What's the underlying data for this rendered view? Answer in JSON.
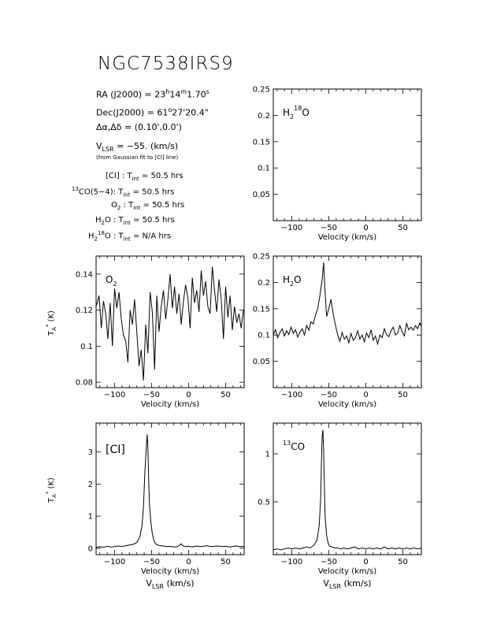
{
  "header": {
    "title": "NGC7538IRS9",
    "ra_label": "RA (J2000) = ",
    "ra_h": "23",
    "ra_h_unit": "h",
    "ra_m": "14",
    "ra_m_unit": "m",
    "ra_s": "1.70",
    "ra_s_unit": "s",
    "dec_label": "Dec(J2000) = ",
    "dec_deg": "61",
    "dec_deg_unit": "o",
    "dec_rest": "27'20.4\"",
    "offset_label": "Δα,Δδ = ",
    "offset_value": "(0.10',0.0')",
    "vlsr_V": "V",
    "vlsr_sub": "LSR",
    "vlsr_value": " = −55. (km/s)",
    "fit_note": "(from Gaussian fit to [CI] line)"
  },
  "integration": [
    {
      "pre": "",
      "sup": "",
      "name": "[CI]",
      "sep": " : T",
      "sub": "int",
      "value": " = 50.5 hrs"
    },
    {
      "pre": "",
      "sup": "13",
      "name": "CO(5−4):",
      "sep": " T",
      "sub": "int",
      "value": " = 50.5 hrs"
    },
    {
      "pre": "",
      "sup": "",
      "name": "O",
      "name_sub": "2",
      "sep": " : T",
      "sub": "int",
      "value": " = 50.5 hrs"
    },
    {
      "pre": "",
      "sup": "",
      "name": "H",
      "name_sub": "2",
      "name_after": "O",
      "sep": " : T",
      "sub": "int",
      "value": " = 50.5 hrs"
    },
    {
      "pre": "",
      "sup": "18",
      "name": "H",
      "name_sub": "2",
      "name_after": "O",
      "sep": " : T",
      "sub": "int",
      "value": " = N/A hrs"
    }
  ],
  "axis_text": {
    "xlabel": "Velocity (km/s)",
    "bottom_xlabel": "V",
    "bottom_xlabel_sub": "LSR",
    "bottom_xlabel_rest": " (km/s)",
    "ylabel": "T",
    "ylabel_sub": "A",
    "ylabel_sup": "*",
    "ylabel_rest": " (K)"
  },
  "chart_data": [
    {
      "type": "line",
      "panel": "h218o",
      "label": "H2 18O",
      "xlim": [
        -125,
        75
      ],
      "ylim": [
        0.0,
        0.25
      ],
      "x_ticks": [
        -100,
        -50,
        0,
        50
      ],
      "y_ticks": [
        0.05,
        0.1,
        0.15,
        0.2,
        0.25
      ],
      "y_tick_labels": [
        "0.05",
        "0.1",
        "0.15",
        "0.2",
        "0.25"
      ],
      "xlabel": "Velocity (km/s)",
      "series": []
    },
    {
      "type": "line",
      "panel": "o2",
      "label": "O2",
      "xlim": [
        -125,
        75
      ],
      "ylim": [
        0.077,
        0.15
      ],
      "x_ticks": [
        -100,
        -50,
        0,
        50
      ],
      "y_ticks": [
        0.08,
        0.1,
        0.12,
        0.14
      ],
      "y_tick_labels": [
        "0.08",
        "0.1",
        "0.12",
        "0.14"
      ],
      "xlabel": "Velocity (km/s)",
      "series": [
        {
          "x": [
            -125,
            -121,
            -118,
            -115,
            -112,
            -109,
            -106,
            -103,
            -100,
            -97,
            -94,
            -91,
            -88,
            -85,
            -82,
            -79,
            -76,
            -73,
            -70,
            -67,
            -64,
            -61,
            -58,
            -55,
            -52,
            -49,
            -46,
            -43,
            -40,
            -37,
            -34,
            -31,
            -28,
            -25,
            -22,
            -19,
            -16,
            -13,
            -10,
            -7,
            -4,
            -1,
            2,
            5,
            8,
            11,
            14,
            17,
            20,
            23,
            26,
            29,
            32,
            35,
            38,
            41,
            44,
            47,
            50,
            53,
            56,
            59,
            62,
            65,
            68,
            71,
            74
          ],
          "y": [
            0.122,
            0.128,
            0.11,
            0.125,
            0.118,
            0.104,
            0.124,
            0.1,
            0.132,
            0.121,
            0.13,
            0.115,
            0.106,
            0.103,
            0.091,
            0.12,
            0.112,
            0.126,
            0.108,
            0.089,
            0.098,
            0.081,
            0.112,
            0.096,
            0.13,
            0.119,
            0.087,
            0.128,
            0.108,
            0.122,
            0.131,
            0.115,
            0.126,
            0.14,
            0.121,
            0.133,
            0.118,
            0.129,
            0.112,
            0.125,
            0.134,
            0.127,
            0.11,
            0.138,
            0.124,
            0.131,
            0.119,
            0.142,
            0.128,
            0.136,
            0.122,
            0.118,
            0.144,
            0.131,
            0.119,
            0.137,
            0.126,
            0.104,
            0.133,
            0.116,
            0.128,
            0.109,
            0.122,
            0.113,
            0.118,
            0.11,
            0.12
          ]
        }
      ]
    },
    {
      "type": "line",
      "panel": "h2o",
      "label": "H2O",
      "xlim": [
        -125,
        75
      ],
      "ylim": [
        0.0,
        0.25
      ],
      "x_ticks": [
        -100,
        -50,
        0,
        50
      ],
      "y_ticks": [
        0.05,
        0.1,
        0.15,
        0.2,
        0.25
      ],
      "y_tick_labels": [
        "0.05",
        "0.1",
        "0.15",
        "0.2",
        "0.25"
      ],
      "xlabel": "Velocity (km/s)",
      "series": [
        {
          "x": [
            -125,
            -122,
            -119,
            -116,
            -113,
            -110,
            -107,
            -104,
            -101,
            -98,
            -95,
            -92,
            -89,
            -86,
            -83,
            -80,
            -77,
            -74,
            -71,
            -68,
            -65,
            -62,
            -59,
            -57,
            -55,
            -53,
            -50,
            -47,
            -44,
            -41,
            -38,
            -35,
            -32,
            -29,
            -26,
            -23,
            -20,
            -17,
            -14,
            -11,
            -8,
            -5,
            -2,
            1,
            4,
            7,
            10,
            13,
            16,
            19,
            22,
            25,
            28,
            31,
            34,
            37,
            40,
            43,
            46,
            49,
            52,
            55,
            58,
            61,
            64,
            67,
            70,
            73,
            75
          ],
          "y": [
            0.1,
            0.11,
            0.095,
            0.105,
            0.112,
            0.098,
            0.108,
            0.101,
            0.115,
            0.103,
            0.11,
            0.096,
            0.105,
            0.112,
            0.1,
            0.118,
            0.109,
            0.125,
            0.121,
            0.138,
            0.15,
            0.175,
            0.205,
            0.238,
            0.18,
            0.135,
            0.15,
            0.168,
            0.14,
            0.118,
            0.1,
            0.088,
            0.105,
            0.092,
            0.098,
            0.085,
            0.103,
            0.09,
            0.095,
            0.108,
            0.092,
            0.1,
            0.087,
            0.104,
            0.095,
            0.11,
            0.09,
            0.098,
            0.083,
            0.1,
            0.095,
            0.112,
            0.101,
            0.097,
            0.108,
            0.115,
            0.1,
            0.104,
            0.118,
            0.106,
            0.098,
            0.122,
            0.11,
            0.115,
            0.109,
            0.118,
            0.112,
            0.123,
            0.116
          ]
        }
      ]
    },
    {
      "type": "line",
      "panel": "ci",
      "label": "[CI]",
      "xlim": [
        -125,
        75
      ],
      "ylim": [
        -0.2,
        3.9
      ],
      "x_ticks": [
        -100,
        -50,
        0,
        50
      ],
      "y_ticks": [
        0,
        1,
        2,
        3
      ],
      "y_tick_labels": [
        "0",
        "1",
        "2",
        "3"
      ],
      "xlabel": "Velocity (km/s)",
      "series": [
        {
          "x": [
            -125,
            -120,
            -115,
            -110,
            -105,
            -100,
            -95,
            -90,
            -85,
            -80,
            -75,
            -70,
            -66,
            -63,
            -61,
            -59,
            -57,
            -56,
            -55,
            -54,
            -53,
            -51,
            -49,
            -47,
            -45,
            -42,
            -38,
            -34,
            -30,
            -25,
            -20,
            -15,
            -12,
            -10,
            -8,
            -5,
            0,
            5,
            10,
            15,
            20,
            25,
            30,
            35,
            40,
            45,
            50,
            55,
            60,
            65,
            70,
            75
          ],
          "y": [
            0.02,
            0.05,
            0.03,
            0.06,
            0.04,
            0.05,
            0.07,
            0.05,
            0.08,
            0.1,
            0.12,
            0.18,
            0.35,
            0.7,
            1.3,
            2.4,
            3.2,
            3.55,
            3.1,
            2.2,
            1.4,
            0.8,
            0.45,
            0.25,
            0.15,
            0.1,
            0.08,
            0.07,
            0.05,
            0.06,
            0.04,
            0.05,
            0.1,
            0.14,
            0.08,
            0.05,
            0.06,
            0.04,
            0.07,
            0.05,
            0.06,
            0.08,
            0.05,
            0.06,
            0.07,
            0.05,
            0.06,
            0.04,
            0.06,
            0.07,
            0.05,
            0.06
          ]
        }
      ]
    },
    {
      "type": "line",
      "panel": "13co",
      "label": "13CO",
      "xlim": [
        -125,
        75
      ],
      "ylim": [
        -0.05,
        1.32
      ],
      "x_ticks": [
        -100,
        -50,
        0,
        50
      ],
      "y_ticks": [
        0.5,
        1.0
      ],
      "y_tick_labels": [
        "0.5",
        "1"
      ],
      "xlabel": "Velocity (km/s)",
      "series": [
        {
          "x": [
            -125,
            -120,
            -115,
            -110,
            -105,
            -100,
            -95,
            -90,
            -85,
            -80,
            -75,
            -70,
            -66,
            -63,
            -61,
            -60,
            -59,
            -58,
            -57,
            -56,
            -55,
            -53,
            -51,
            -49,
            -46,
            -42,
            -38,
            -34,
            -30,
            -25,
            -20,
            -15,
            -10,
            -5,
            0,
            5,
            10,
            15,
            20,
            25,
            30,
            35,
            40,
            45,
            50,
            55,
            60,
            65,
            70,
            75
          ],
          "y": [
            0.0,
            0.01,
            0.0,
            0.01,
            0.02,
            0.01,
            0.02,
            0.01,
            0.02,
            0.03,
            0.02,
            0.05,
            0.1,
            0.25,
            0.55,
            0.9,
            1.18,
            1.25,
            1.05,
            0.65,
            0.35,
            0.15,
            0.07,
            0.04,
            0.03,
            0.02,
            0.02,
            0.01,
            0.02,
            0.01,
            0.02,
            0.03,
            0.01,
            0.02,
            0.01,
            0.02,
            0.01,
            0.02,
            0.01,
            0.03,
            0.01,
            0.02,
            0.01,
            0.02,
            0.01,
            0.02,
            0.01,
            0.02,
            0.01,
            0.02
          ]
        }
      ]
    }
  ]
}
